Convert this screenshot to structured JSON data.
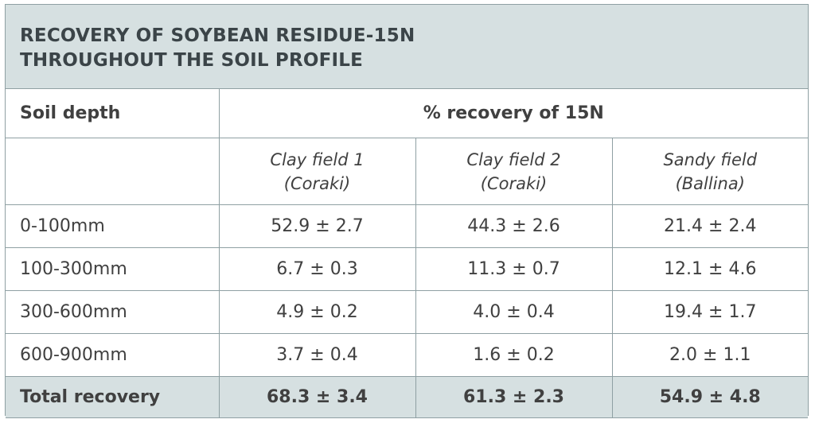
{
  "title": {
    "line1": "RECOVERY OF SOYBEAN RESIDUE-15N",
    "line2": "THROUGHOUT THE SOIL PROFILE"
  },
  "header": {
    "soil_depth": "Soil depth",
    "recovery": "% recovery of 15N"
  },
  "subheaders": [
    {
      "line1": "Clay field 1",
      "line2": "(Coraki)"
    },
    {
      "line1": "Clay field 2",
      "line2": "(Coraki)"
    },
    {
      "line1": "Sandy field",
      "line2": "(Ballina)"
    }
  ],
  "rows": [
    {
      "depth": "0-100mm",
      "values": [
        "52.9 ± 2.7",
        "44.3 ± 2.6",
        "21.4 ± 2.4"
      ]
    },
    {
      "depth": "100-300mm",
      "values": [
        "6.7 ± 0.3",
        "11.3 ± 0.7",
        "12.1 ± 4.6"
      ]
    },
    {
      "depth": "300-600mm",
      "values": [
        "4.9 ± 0.2",
        "4.0 ± 0.4",
        "19.4 ± 1.7"
      ]
    },
    {
      "depth": "600-900mm",
      "values": [
        "3.7 ± 0.4",
        "1.6 ± 0.2",
        "2.0 ± 1.1"
      ]
    }
  ],
  "total": {
    "label": "Total recovery",
    "values": [
      "68.3 ± 3.4",
      "61.3 ± 2.3",
      "54.9 ± 4.8"
    ]
  },
  "colors": {
    "header_fill": "#d6e0e1",
    "border": "#8fa0a3",
    "text": "#3b4448"
  }
}
